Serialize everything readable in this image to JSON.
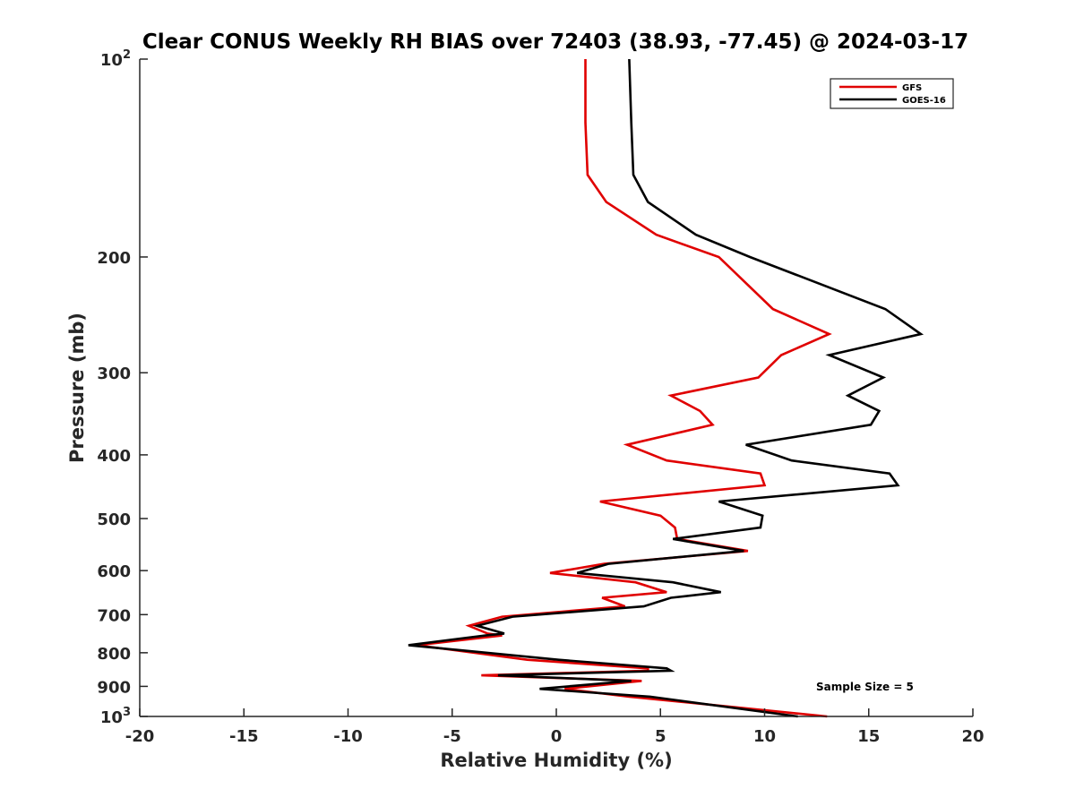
{
  "chart_data": {
    "type": "line",
    "title": "Clear CONUS Weekly RH BIAS over 72403 (38.93, -77.45) @ 2024-03-17",
    "xlabel": "Relative Humidity (%)",
    "ylabel": "Pressure (mb)",
    "xlim": [
      -20,
      20
    ],
    "ylim": [
      100,
      1000
    ],
    "y_scale": "log",
    "y_reversed": true,
    "x_ticks": [
      "-20",
      "-15",
      "-10",
      "-5",
      "0",
      "5",
      "10",
      "15",
      "20"
    ],
    "y_ticks": [
      {
        "value": 100,
        "base": "10",
        "exp": "2"
      },
      {
        "value": 200,
        "label": "200"
      },
      {
        "value": 300,
        "label": "300"
      },
      {
        "value": 400,
        "label": "400"
      },
      {
        "value": 500,
        "label": "500"
      },
      {
        "value": 600,
        "label": "600"
      },
      {
        "value": 700,
        "label": "700"
      },
      {
        "value": 800,
        "label": "800"
      },
      {
        "value": 900,
        "label": "900"
      },
      {
        "value": 1000,
        "base": "10",
        "exp": "3"
      }
    ],
    "grid": false,
    "legend_position": "top-right",
    "annotation": "Sample Size = 5",
    "series": [
      {
        "name": "GFS",
        "color": "#e00000",
        "points": [
          [
            1.4,
            100
          ],
          [
            1.4,
            125
          ],
          [
            1.5,
            150
          ],
          [
            2.4,
            165
          ],
          [
            4.8,
            185
          ],
          [
            7.8,
            200
          ],
          [
            10.4,
            240
          ],
          [
            13.1,
            262
          ],
          [
            10.8,
            282
          ],
          [
            9.7,
            305
          ],
          [
            5.5,
            325
          ],
          [
            6.9,
            343
          ],
          [
            7.5,
            360
          ],
          [
            3.4,
            386
          ],
          [
            5.3,
            408
          ],
          [
            9.8,
            427
          ],
          [
            10.0,
            445
          ],
          [
            2.1,
            471
          ],
          [
            5.0,
            495
          ],
          [
            5.7,
            516
          ],
          [
            5.8,
            537
          ],
          [
            9.2,
            560
          ],
          [
            2.3,
            586
          ],
          [
            -0.3,
            605
          ],
          [
            3.8,
            625
          ],
          [
            5.3,
            647
          ],
          [
            2.2,
            660
          ],
          [
            3.3,
            680
          ],
          [
            -2.6,
            705
          ],
          [
            -4.2,
            728
          ],
          [
            -3.3,
            748
          ],
          [
            -2.6,
            753
          ],
          [
            -6.7,
            779
          ],
          [
            -1.4,
            820
          ],
          [
            4.4,
            845
          ],
          [
            4.4,
            852
          ],
          [
            -3.6,
            866
          ],
          [
            4.1,
            883
          ],
          [
            0.4,
            908
          ],
          [
            3.5,
            933
          ],
          [
            13.0,
            1000
          ]
        ]
      },
      {
        "name": "GOES-16",
        "color": "#000000",
        "points": [
          [
            3.5,
            100
          ],
          [
            3.6,
            125
          ],
          [
            3.7,
            150
          ],
          [
            4.4,
            165
          ],
          [
            6.7,
            185
          ],
          [
            9.3,
            200
          ],
          [
            15.8,
            240
          ],
          [
            17.5,
            262
          ],
          [
            13.1,
            282
          ],
          [
            15.7,
            305
          ],
          [
            14.0,
            325
          ],
          [
            15.5,
            343
          ],
          [
            15.1,
            360
          ],
          [
            9.1,
            386
          ],
          [
            11.3,
            408
          ],
          [
            16.0,
            427
          ],
          [
            16.4,
            445
          ],
          [
            7.8,
            471
          ],
          [
            9.9,
            495
          ],
          [
            9.8,
            516
          ],
          [
            5.6,
            537
          ],
          [
            9.0,
            560
          ],
          [
            2.5,
            586
          ],
          [
            1.0,
            605
          ],
          [
            5.6,
            625
          ],
          [
            7.9,
            647
          ],
          [
            5.5,
            660
          ],
          [
            4.2,
            680
          ],
          [
            -2.1,
            705
          ],
          [
            -3.8,
            728
          ],
          [
            -2.5,
            748
          ],
          [
            -3.4,
            753
          ],
          [
            -7.1,
            779
          ],
          [
            0.1,
            820
          ],
          [
            5.3,
            845
          ],
          [
            5.5,
            852
          ],
          [
            -2.8,
            866
          ],
          [
            3.6,
            883
          ],
          [
            -0.8,
            908
          ],
          [
            4.5,
            933
          ],
          [
            11.6,
            1000
          ]
        ]
      }
    ]
  }
}
